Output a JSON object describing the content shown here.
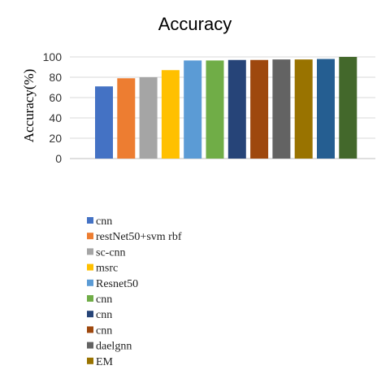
{
  "chart_data": {
    "type": "bar",
    "title": "Accuracy",
    "xlabel": "",
    "ylabel": "Accuracy(%)",
    "ylim": [
      0,
      100
    ],
    "yticks": [
      0,
      20,
      40,
      60,
      80,
      100
    ],
    "grid": true,
    "legend_position": "bottom-left",
    "series": [
      {
        "name": "cnn",
        "value": 71,
        "color": "#4472C4"
      },
      {
        "name": "restNet50+svm rbf",
        "value": 79,
        "color": "#ED7D31"
      },
      {
        "name": "sc-cnn",
        "value": 80,
        "color": "#A5A5A5"
      },
      {
        "name": "msrc",
        "value": 87,
        "color": "#FFC000"
      },
      {
        "name": "Resnet50",
        "value": 96.5,
        "color": "#5B9BD5"
      },
      {
        "name": "cnn",
        "value": 96.5,
        "color": "#70AD47"
      },
      {
        "name": "cnn",
        "value": 97,
        "color": "#264478"
      },
      {
        "name": "cnn",
        "value": 97,
        "color": "#9E480E"
      },
      {
        "name": "daelgnn",
        "value": 97.5,
        "color": "#636363"
      },
      {
        "name": "EM",
        "value": 97.5,
        "color": "#997300"
      },
      {
        "name": "",
        "value": 98,
        "color": "#255E91"
      },
      {
        "name": "",
        "value": 100,
        "color": "#43682B"
      }
    ]
  }
}
